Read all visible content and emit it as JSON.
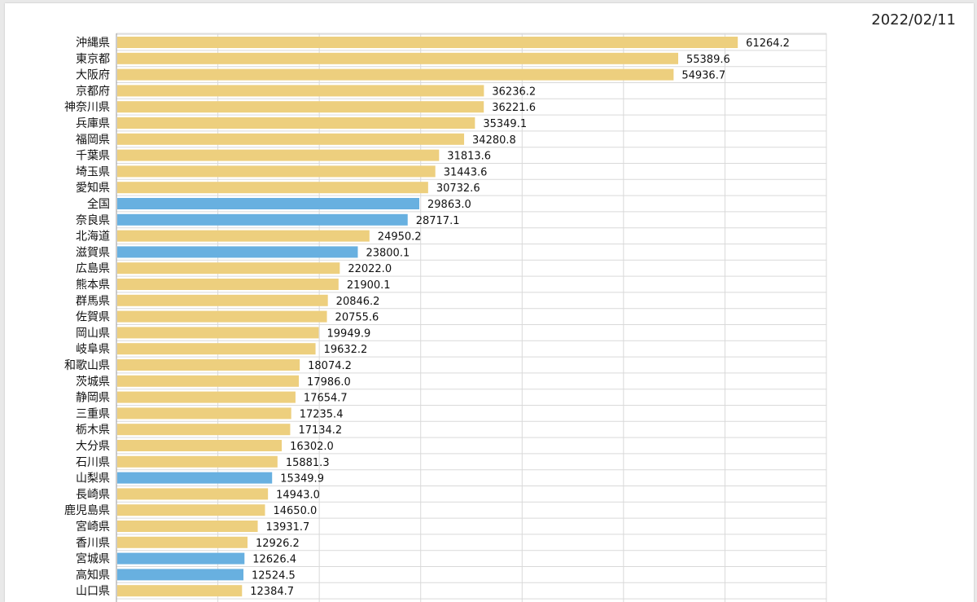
{
  "date": "2022/02/11",
  "colors": {
    "default_bar": "#EDCF7E",
    "highlight_bar": "#68B0E0",
    "grid": "#D9D9D9",
    "axis": "#999999",
    "text": "#111111"
  },
  "chart_data": {
    "type": "bar",
    "orientation": "horizontal",
    "title": "",
    "xlabel": "",
    "ylabel": "",
    "xlim": [
      0,
      70000
    ],
    "grid": true,
    "categories": [
      "沖縄県",
      "東京都",
      "大阪府",
      "京都府",
      "神奈川県",
      "兵庫県",
      "福岡県",
      "千葉県",
      "埼玉県",
      "愛知県",
      "全国",
      "奈良県",
      "北海道",
      "滋賀県",
      "広島県",
      "熊本県",
      "群馬県",
      "佐賀県",
      "岡山県",
      "岐阜県",
      "和歌山県",
      "茨城県",
      "静岡県",
      "三重県",
      "栃木県",
      "大分県",
      "石川県",
      "山梨県",
      "長崎県",
      "鹿児島県",
      "宮崎県",
      "香川県",
      "宮城県",
      "高知県",
      "山口県"
    ],
    "values": [
      61264.2,
      55389.6,
      54936.7,
      36236.2,
      36221.6,
      35349.1,
      34280.8,
      31813.6,
      31443.6,
      30732.6,
      29863.0,
      28717.1,
      24950.2,
      23800.1,
      22022.0,
      21900.1,
      20846.2,
      20755.6,
      19949.9,
      19632.2,
      18074.2,
      17986.0,
      17654.7,
      17235.4,
      17134.2,
      16302.0,
      15881.3,
      15349.9,
      14943.0,
      14650.0,
      13931.7,
      12926.2,
      12626.4,
      12524.5,
      12384.7
    ],
    "value_labels": [
      "61264.2",
      "55389.6",
      "54936.7",
      "36236.2",
      "36221.6",
      "35349.1",
      "34280.8",
      "31813.6",
      "31443.6",
      "30732.6",
      "29863.0",
      "28717.1",
      "24950.2",
      "23800.1",
      "22022.0",
      "21900.1",
      "20846.2",
      "20755.6",
      "19949.9",
      "19632.2",
      "18074.2",
      "17986.0",
      "17654.7",
      "17235.4",
      "17134.2",
      "16302.0",
      "15881.3",
      "15349.9",
      "14943.0",
      "14650.0",
      "13931.7",
      "12926.2",
      "12626.4",
      "12524.5",
      "12384.7"
    ],
    "highlighted": [
      "全国",
      "奈良県",
      "滋賀県",
      "山梨県",
      "宮城県",
      "高知県"
    ]
  }
}
